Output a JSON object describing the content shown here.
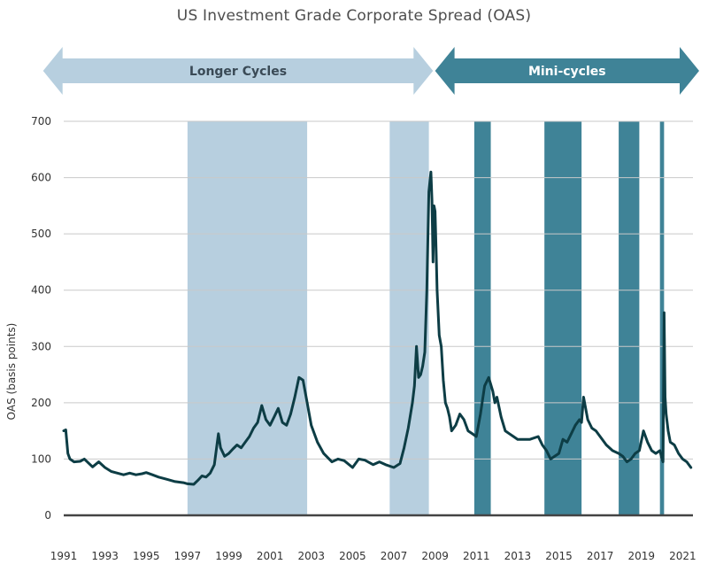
{
  "chart_data": {
    "type": "line",
    "title": "US Investment Grade Corporate Spread (OAS)",
    "ylabel": "OAS (basis points)",
    "xlabel": "",
    "ylim": [
      0,
      700
    ],
    "xlim": [
      1991,
      2021.5
    ],
    "yticks": [
      0,
      100,
      200,
      300,
      400,
      500,
      600,
      700
    ],
    "xticks": [
      "1991",
      "1993",
      "1995",
      "1997",
      "1999",
      "2001",
      "2003",
      "2005",
      "2007",
      "2009",
      "2011",
      "2013",
      "2015",
      "2017",
      "2019",
      "2021"
    ],
    "grid": true,
    "arrows": [
      {
        "label": "Longer Cycles",
        "from": 1990.0,
        "to": 2008.9,
        "color": "#b7cfdf",
        "text_color": "#3a4a56"
      },
      {
        "label": "Mini-cycles",
        "from": 2009.0,
        "to": 2022.0,
        "color": "#3f8397",
        "text_color": "#ffffff"
      }
    ],
    "bands": [
      {
        "from": 1997.0,
        "to": 2002.8,
        "kind": "longer",
        "color": "#b7cfdf"
      },
      {
        "from": 2006.8,
        "to": 2008.7,
        "kind": "longer",
        "color": "#b7cfdf"
      },
      {
        "from": 2010.9,
        "to": 2011.7,
        "kind": "mini",
        "color": "#3f8397"
      },
      {
        "from": 2014.3,
        "to": 2016.1,
        "kind": "mini",
        "color": "#3f8397"
      },
      {
        "from": 2017.9,
        "to": 2018.9,
        "kind": "mini",
        "color": "#3f8397"
      },
      {
        "from": 2019.9,
        "to": 2020.1,
        "kind": "mini",
        "color": "#3f8397"
      }
    ],
    "series": [
      {
        "color": "#0d3d45",
        "x": [
          1991.0,
          1991.1,
          1991.2,
          1991.3,
          1991.5,
          1991.8,
          1992.0,
          1992.2,
          1992.4,
          1992.7,
          1993.0,
          1993.3,
          1993.6,
          1993.9,
          1994.2,
          1994.5,
          1994.8,
          1995.0,
          1995.3,
          1995.6,
          1996.0,
          1996.4,
          1996.8,
          1997.0,
          1997.3,
          1997.5,
          1997.7,
          1997.9,
          1998.1,
          1998.3,
          1998.5,
          1998.6,
          1998.8,
          1999.0,
          1999.2,
          1999.4,
          1999.6,
          1999.8,
          2000.0,
          2000.2,
          2000.4,
          2000.6,
          2000.8,
          2001.0,
          2001.2,
          2001.4,
          2001.6,
          2001.8,
          2002.0,
          2002.2,
          2002.4,
          2002.6,
          2002.8,
          2003.0,
          2003.3,
          2003.6,
          2004.0,
          2004.3,
          2004.6,
          2005.0,
          2005.3,
          2005.6,
          2006.0,
          2006.3,
          2006.6,
          2007.0,
          2007.3,
          2007.5,
          2007.7,
          2007.9,
          2008.0,
          2008.1,
          2008.2,
          2008.3,
          2008.4,
          2008.5,
          2008.6,
          2008.7,
          2008.8,
          2008.85,
          2008.9,
          2008.95,
          2009.0,
          2009.05,
          2009.1,
          2009.2,
          2009.3,
          2009.4,
          2009.5,
          2009.6,
          2009.7,
          2009.8,
          2010.0,
          2010.2,
          2010.4,
          2010.6,
          2010.8,
          2011.0,
          2011.2,
          2011.4,
          2011.6,
          2011.8,
          2011.9,
          2012.0,
          2012.2,
          2012.4,
          2012.6,
          2012.8,
          2013.0,
          2013.3,
          2013.6,
          2014.0,
          2014.2,
          2014.4,
          2014.6,
          2014.8,
          2015.0,
          2015.2,
          2015.4,
          2015.6,
          2015.8,
          2016.0,
          2016.1,
          2016.2,
          2016.4,
          2016.6,
          2016.8,
          2017.0,
          2017.3,
          2017.6,
          2017.9,
          2018.1,
          2018.3,
          2018.5,
          2018.7,
          2018.9,
          2019.1,
          2019.3,
          2019.5,
          2019.7,
          2019.9,
          2020.0,
          2020.05,
          2020.1,
          2020.15,
          2020.2,
          2020.3,
          2020.4,
          2020.6,
          2020.8,
          2021.0,
          2021.2,
          2021.4
        ],
        "y": [
          150,
          152,
          110,
          100,
          95,
          96,
          100,
          93,
          86,
          95,
          85,
          78,
          75,
          72,
          75,
          72,
          74,
          76,
          72,
          68,
          64,
          60,
          58,
          56,
          55,
          62,
          70,
          68,
          75,
          90,
          145,
          120,
          105,
          110,
          118,
          125,
          120,
          130,
          140,
          155,
          165,
          195,
          170,
          160,
          175,
          190,
          165,
          160,
          180,
          210,
          245,
          240,
          200,
          160,
          130,
          110,
          95,
          100,
          97,
          85,
          100,
          98,
          90,
          95,
          90,
          85,
          92,
          120,
          155,
          200,
          230,
          300,
          245,
          250,
          265,
          290,
          400,
          575,
          610,
          560,
          450,
          550,
          540,
          470,
          400,
          320,
          300,
          240,
          200,
          190,
          175,
          150,
          160,
          180,
          170,
          150,
          145,
          140,
          180,
          230,
          245,
          220,
          200,
          210,
          175,
          150,
          145,
          140,
          135,
          135,
          135,
          140,
          125,
          115,
          100,
          105,
          110,
          135,
          130,
          145,
          160,
          170,
          165,
          210,
          170,
          155,
          150,
          140,
          125,
          115,
          110,
          105,
          95,
          100,
          110,
          115,
          150,
          130,
          115,
          110,
          115,
          100,
          95,
          360,
          210,
          180,
          150,
          130,
          125,
          110,
          100,
          95,
          85
        ]
      }
    ]
  }
}
